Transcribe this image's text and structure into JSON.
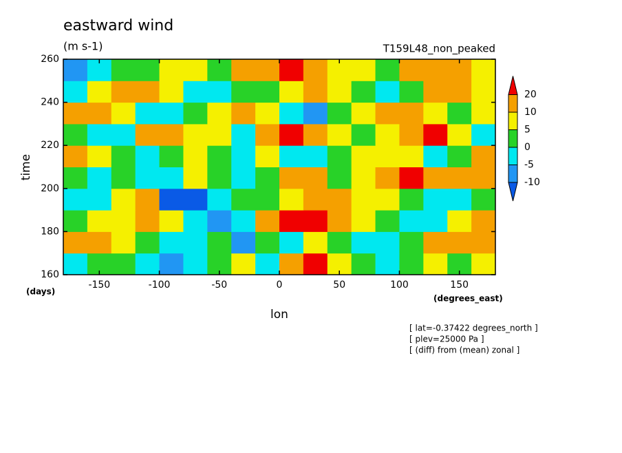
{
  "chart_data": {
    "type": "contourf",
    "title": "eastward wind",
    "subtitle": "(m s-1)",
    "run": "T159L48_non_peaked",
    "x_label": "lon",
    "x_unit": "(degrees_east)",
    "y_label": "time",
    "y_unit": "(days)",
    "notes": [
      "[ lat=-0.37422 degrees_north ]",
      "[ plev=25000 Pa ]",
      "[ (diff) from (mean) zonal ]"
    ],
    "xlim": [
      -180,
      180
    ],
    "xticks": [
      -150,
      -100,
      -50,
      0,
      50,
      100,
      150
    ],
    "ylim": [
      160,
      260
    ],
    "yticks": [
      160,
      180,
      200,
      220,
      240,
      260
    ],
    "x": [
      -170,
      -150,
      -130,
      -110,
      -90,
      -70,
      -50,
      -30,
      -10,
      10,
      30,
      50,
      70,
      90,
      110,
      130,
      150,
      170
    ],
    "y": [
      165,
      175,
      185,
      195,
      205,
      215,
      225,
      235,
      245,
      255
    ],
    "z": [
      [
        -3,
        2,
        0,
        -5,
        -8,
        -3,
        2,
        5,
        -2,
        12,
        22,
        8,
        3,
        -2,
        0,
        5,
        3,
        8
      ],
      [
        15,
        12,
        8,
        2,
        -5,
        -3,
        0,
        -8,
        3,
        -2,
        5,
        2,
        -3,
        -5,
        2,
        10,
        14,
        18
      ],
      [
        3,
        5,
        8,
        10,
        5,
        -5,
        -8,
        -3,
        15,
        22,
        20,
        12,
        5,
        0,
        -3,
        -5,
        8,
        12
      ],
      [
        -5,
        -3,
        5,
        10,
        -12,
        -12,
        -5,
        0,
        3,
        8,
        15,
        12,
        8,
        5,
        0,
        -3,
        -5,
        0
      ],
      [
        2,
        -3,
        0,
        -5,
        -3,
        5,
        0,
        -2,
        3,
        12,
        15,
        0,
        5,
        10,
        22,
        12,
        10,
        15
      ],
      [
        12,
        8,
        3,
        -5,
        2,
        5,
        0,
        -3,
        5,
        -5,
        -3,
        0,
        5,
        8,
        5,
        -2,
        3,
        12
      ],
      [
        0,
        -5,
        -3,
        10,
        12,
        8,
        5,
        -3,
        15,
        22,
        18,
        8,
        0,
        5,
        12,
        22,
        8,
        -3
      ],
      [
        15,
        10,
        5,
        -3,
        -5,
        0,
        8,
        12,
        5,
        -5,
        -8,
        0,
        8,
        12,
        10,
        5,
        0,
        5
      ],
      [
        -3,
        5,
        12,
        10,
        5,
        -2,
        -5,
        0,
        3,
        8,
        12,
        8,
        3,
        -5,
        0,
        12,
        15,
        8
      ],
      [
        -8,
        -5,
        0,
        3,
        8,
        5,
        0,
        10,
        15,
        22,
        12,
        8,
        5,
        3,
        10,
        15,
        12,
        5
      ]
    ],
    "levels": [
      -10,
      -5,
      0,
      5,
      10,
      20
    ],
    "level_colors": [
      "#0a5ae6",
      "#2196f3",
      "#00e8f0",
      "#28d228",
      "#f5f000",
      "#f5a000",
      "#f00000"
    ]
  }
}
